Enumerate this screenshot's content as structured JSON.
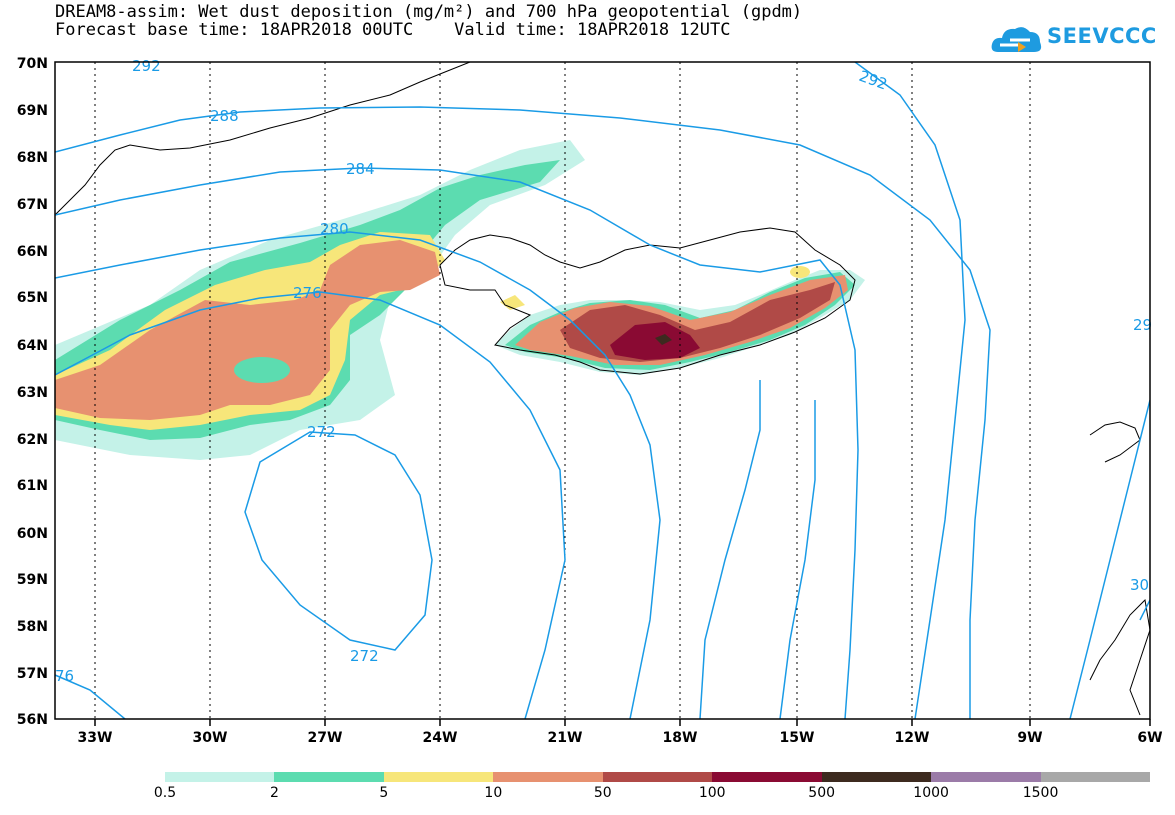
{
  "title": {
    "line1": "DREAM8-assim: Wet dust deposition (mg/m²) and 700 hPa geopotential (gpdm)",
    "line2": "Forecast base time: 18APR2018 00UTC    Valid time: 18APR2018 12UTC"
  },
  "logo": {
    "text": "SEEVCCC",
    "icon": "cloud-icon"
  },
  "axes": {
    "lat_labels": [
      "70N",
      "69N",
      "68N",
      "67N",
      "66N",
      "65N",
      "64N",
      "63N",
      "62N",
      "61N",
      "60N",
      "59N",
      "58N",
      "57N",
      "56N"
    ],
    "lon_labels": [
      "33W",
      "30W",
      "27W",
      "24W",
      "21W",
      "18W",
      "15W",
      "12W",
      "9W",
      "6W"
    ]
  },
  "contour_labels": [
    "292",
    "292",
    "288",
    "284",
    "280",
    "276",
    "272",
    "272",
    "76",
    "29",
    "30"
  ],
  "colorbar": {
    "colors": [
      "#c4f2e8",
      "#5cdcb0",
      "#f7e67a",
      "#e79170",
      "#b04a47",
      "#8a0a33",
      "#3d2a1f",
      "#9b7ba8",
      "#a8a8a8"
    ],
    "labels": [
      "0.5",
      "2",
      "5",
      "10",
      "50",
      "100",
      "500",
      "1000",
      "1500"
    ]
  },
  "colors": {
    "contour": "#1a9be6",
    "grid": "#000000"
  }
}
